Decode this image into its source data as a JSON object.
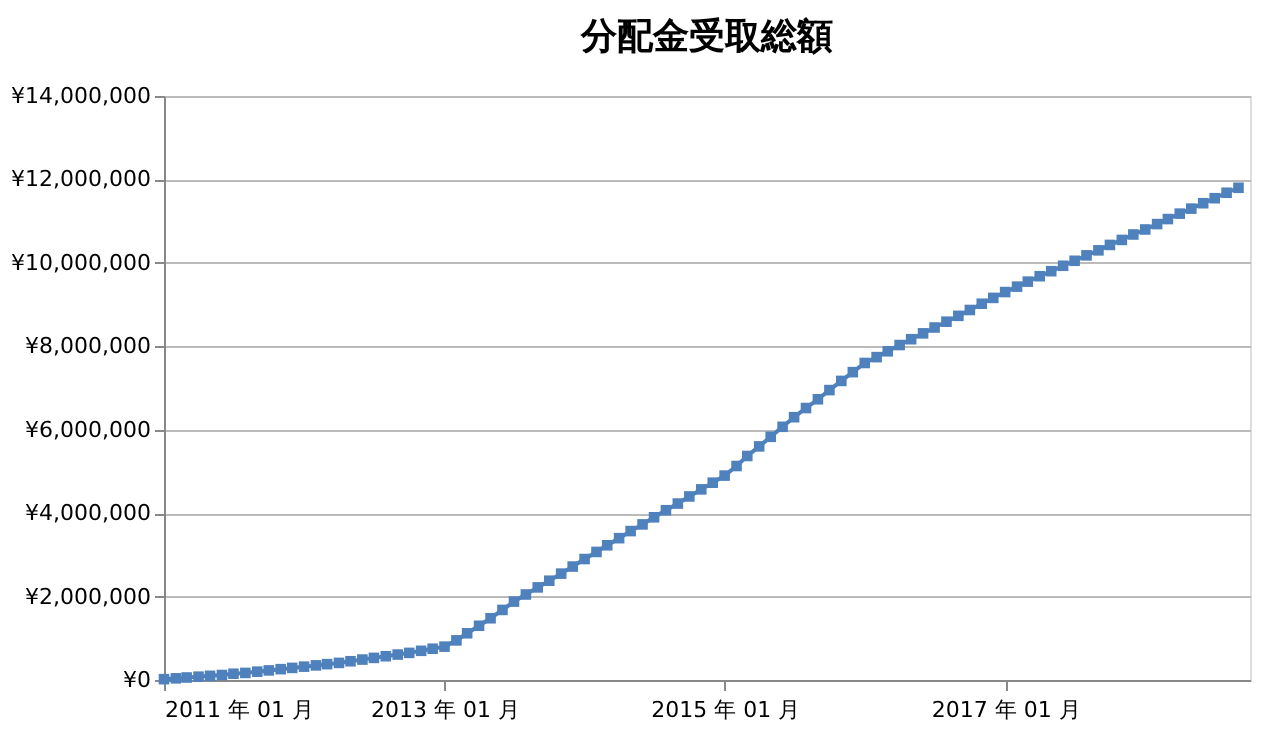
{
  "chart_data": {
    "type": "line",
    "title": "分配金受取総額",
    "x": [
      "2011-01",
      "2011-02",
      "2011-03",
      "2011-04",
      "2011-05",
      "2011-06",
      "2011-07",
      "2011-08",
      "2011-09",
      "2011-10",
      "2011-11",
      "2011-12",
      "2012-01",
      "2012-02",
      "2012-03",
      "2012-04",
      "2012-05",
      "2012-06",
      "2012-07",
      "2012-08",
      "2012-09",
      "2012-10",
      "2012-11",
      "2012-12",
      "2013-01",
      "2013-02",
      "2013-03",
      "2013-04",
      "2013-05",
      "2013-06",
      "2013-07",
      "2013-08",
      "2013-09",
      "2013-10",
      "2013-11",
      "2013-12",
      "2014-01",
      "2014-02",
      "2014-03",
      "2014-04",
      "2014-05",
      "2014-06",
      "2014-07",
      "2014-08",
      "2014-09",
      "2014-10",
      "2014-11",
      "2014-12",
      "2015-01",
      "2015-02",
      "2015-03",
      "2015-04",
      "2015-05",
      "2015-06",
      "2015-07",
      "2015-08",
      "2015-09",
      "2015-10",
      "2015-11",
      "2015-12",
      "2016-01",
      "2016-02",
      "2016-03",
      "2016-04",
      "2016-05",
      "2016-06",
      "2016-07",
      "2016-08",
      "2016-09",
      "2016-10",
      "2016-11",
      "2016-12",
      "2017-01",
      "2017-02",
      "2017-03",
      "2017-04",
      "2017-05",
      "2017-06",
      "2017-07",
      "2017-08",
      "2017-09",
      "2017-10",
      "2017-11",
      "2017-12",
      "2018-01",
      "2018-02",
      "2018-03",
      "2018-04",
      "2018-05",
      "2018-06",
      "2018-07",
      "2018-08",
      "2018-09"
    ],
    "series": [
      {
        "color": "#4f81bd",
        "values": [
          20000,
          40000,
          60000,
          80000,
          100000,
          120000,
          150000,
          170000,
          200000,
          230000,
          260000,
          290000,
          320000,
          350000,
          380000,
          410000,
          450000,
          490000,
          530000,
          570000,
          610000,
          650000,
          700000,
          750000,
          800000,
          950000,
          1120000,
          1300000,
          1480000,
          1680000,
          1880000,
          2050000,
          2220000,
          2380000,
          2550000,
          2720000,
          2900000,
          3070000,
          3230000,
          3400000,
          3570000,
          3730000,
          3900000,
          4070000,
          4230000,
          4400000,
          4570000,
          4730000,
          4900000,
          5130000,
          5370000,
          5600000,
          5830000,
          6070000,
          6300000,
          6520000,
          6730000,
          6950000,
          7170000,
          7380000,
          7600000,
          7740000,
          7880000,
          8030000,
          8170000,
          8310000,
          8450000,
          8590000,
          8730000,
          8870000,
          9020000,
          9160000,
          9300000,
          9430000,
          9550000,
          9680000,
          9800000,
          9930000,
          10050000,
          10180000,
          10300000,
          10430000,
          10550000,
          10680000,
          10800000,
          10930000,
          11050000,
          11180000,
          11300000,
          11430000,
          11550000,
          11680000,
          11800000
        ]
      }
    ],
    "xlim": [
      "2011-01",
      "2018-10"
    ],
    "xticks": [
      {
        "value": "2011-01",
        "label": "2011 年 01 月"
      },
      {
        "value": "2013-01",
        "label": "2013 年 01 月"
      },
      {
        "value": "2015-01",
        "label": "2015 年 01 月"
      },
      {
        "value": "2017-01",
        "label": "2017 年 01 月"
      }
    ],
    "ylim": [
      0,
      14000000
    ],
    "yticks": [
      {
        "value": 0,
        "label": "¥0"
      },
      {
        "value": 2000000,
        "label": "¥2,000,000"
      },
      {
        "value": 4000000,
        "label": "¥4,000,000"
      },
      {
        "value": 6000000,
        "label": "¥6,000,000"
      },
      {
        "value": 8000000,
        "label": "¥8,000,000"
      },
      {
        "value": 10000000,
        "label": "¥10,000,000"
      },
      {
        "value": 12000000,
        "label": "¥12,000,000"
      },
      {
        "value": 14000000,
        "label": "¥14,000,000"
      }
    ],
    "grid": "y",
    "marker": "square",
    "line_style": "solid"
  }
}
